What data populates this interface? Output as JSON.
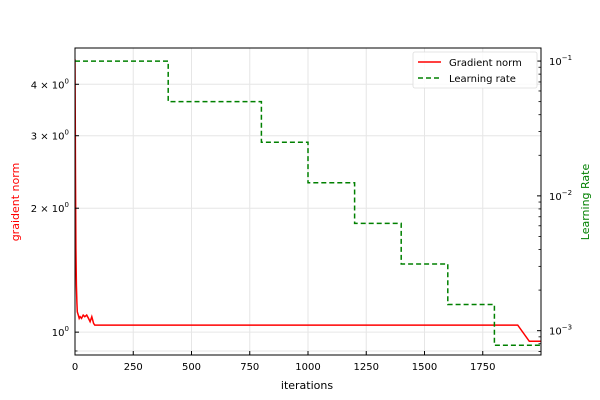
{
  "chart_data": {
    "type": "line",
    "title": "",
    "xlabel": "iterations",
    "ylabel_left": "graident norm",
    "ylabel_right": "Learning Rate",
    "xlim": [
      0,
      2000
    ],
    "ylim_left": [
      0.88,
      4.9
    ],
    "ylim_right": [
      0.00066,
      0.125
    ],
    "yscale_left": "log",
    "yscale_right": "log",
    "grid": true,
    "legend_position": "top-right",
    "x_ticks": [
      0,
      250,
      500,
      750,
      1000,
      1250,
      1500,
      1750
    ],
    "x_tick_labels": [
      "0",
      "250",
      "500",
      "750",
      "1000",
      "1250",
      "1500",
      "1750"
    ],
    "y_left_ticks": [
      1,
      2,
      3,
      4
    ],
    "y_left_tick_labels": [
      {
        "base": "10",
        "exp": "0",
        "coef": ""
      },
      {
        "base": "10",
        "exp": "0",
        "coef": "2 × "
      },
      {
        "base": "10",
        "exp": "0",
        "coef": "3 × "
      },
      {
        "base": "10",
        "exp": "0",
        "coef": "4 × "
      }
    ],
    "y_right_ticks": [
      0.001,
      0.01,
      0.1
    ],
    "y_right_tick_labels": [
      {
        "base": "10",
        "exp": "−3"
      },
      {
        "base": "10",
        "exp": "−2"
      },
      {
        "base": "10",
        "exp": "−1"
      }
    ],
    "series": [
      {
        "name": "Gradient norm",
        "axis": "left",
        "color": "#ff0000",
        "style": "solid",
        "x": [
          0,
          2,
          4,
          6,
          8,
          10,
          14,
          18,
          22,
          28,
          35,
          42,
          50,
          58,
          65,
          72,
          80,
          85,
          90,
          100,
          150,
          200,
          250,
          300,
          350,
          400,
          450,
          500,
          550,
          600,
          650,
          700,
          750,
          800,
          850,
          900,
          950,
          1000,
          1050,
          1100,
          1150,
          1200,
          1250,
          1300,
          1350,
          1400,
          1450,
          1500,
          1550,
          1600,
          1650,
          1700,
          1750,
          1800,
          1850,
          1900,
          1950,
          2000
        ],
        "y": [
          4.6,
          2.4,
          1.6,
          1.3,
          1.18,
          1.12,
          1.1,
          1.08,
          1.09,
          1.08,
          1.1,
          1.09,
          1.1,
          1.08,
          1.06,
          1.09,
          1.05,
          1.04,
          1.04,
          1.04,
          1.04,
          1.04,
          1.04,
          1.04,
          1.04,
          1.04,
          1.04,
          1.04,
          1.04,
          1.04,
          1.04,
          1.04,
          1.04,
          1.04,
          1.04,
          1.04,
          1.04,
          1.04,
          1.04,
          1.04,
          1.04,
          1.04,
          1.04,
          1.04,
          1.04,
          1.04,
          1.04,
          1.04,
          1.04,
          1.04,
          1.04,
          1.04,
          1.04,
          1.04,
          1.04,
          1.04,
          0.95,
          0.95
        ]
      },
      {
        "name": "Learning rate",
        "axis": "right",
        "color": "#008000",
        "style": "dashed",
        "x": [
          0,
          400,
          400,
          800,
          800,
          1000,
          1000,
          1200,
          1200,
          1400,
          1400,
          1600,
          1600,
          1800,
          1800,
          2000
        ],
        "y": [
          0.1,
          0.1,
          0.05,
          0.05,
          0.025,
          0.025,
          0.0125,
          0.0125,
          0.00625,
          0.00625,
          0.003125,
          0.003125,
          0.0015625,
          0.0015625,
          0.00078,
          0.00078
        ]
      }
    ]
  }
}
